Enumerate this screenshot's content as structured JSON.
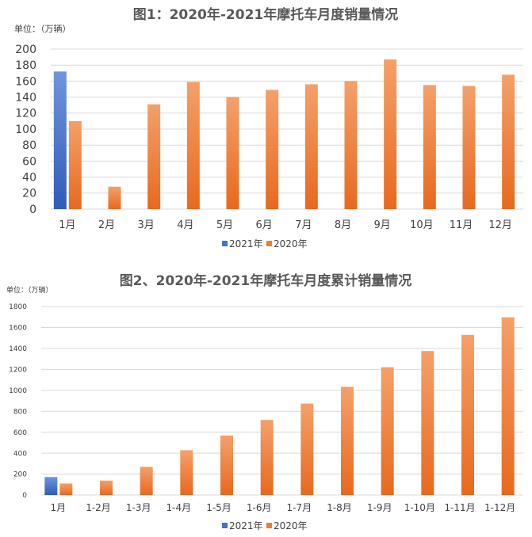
{
  "colors": {
    "s2021": "#4472c4",
    "s2020": "#ed7d31",
    "grid": "#d9d9d9",
    "text": "#404040",
    "title": "#595959"
  },
  "chart_data": [
    {
      "type": "bar",
      "title": "图1：2020年-2021年摩托车月度销量情况",
      "unit": "单位：（万辆）",
      "categories": [
        "1月",
        "2月",
        "3月",
        "4月",
        "5月",
        "6月",
        "7月",
        "8月",
        "9月",
        "10月",
        "11月",
        "12月"
      ],
      "ylim": [
        0,
        200
      ],
      "yticks": [
        0,
        20,
        40,
        60,
        80,
        100,
        120,
        140,
        160,
        180,
        200
      ],
      "grid": true,
      "legend": "bottom",
      "series": [
        {
          "name": "2021年",
          "values": [
            172,
            null,
            null,
            null,
            null,
            null,
            null,
            null,
            null,
            null,
            null,
            null
          ]
        },
        {
          "name": "2020年",
          "values": [
            110,
            28,
            131,
            159,
            140,
            149,
            156,
            160,
            187,
            155,
            154,
            168
          ]
        }
      ]
    },
    {
      "type": "bar",
      "title": "图2、2020年-2021年摩托车月度累计销量情况",
      "unit": "单位：（万辆）",
      "categories": [
        "1月",
        "1-2月",
        "1-3月",
        "1-4月",
        "1-5月",
        "1-6月",
        "1-7月",
        "1-8月",
        "1-9月",
        "1-10月",
        "1-11月",
        "1-12月"
      ],
      "ylim": [
        0,
        1800
      ],
      "yticks": [
        0,
        200,
        400,
        600,
        800,
        1000,
        1200,
        1400,
        1600,
        1800
      ],
      "grid": true,
      "legend": "bottom",
      "series": [
        {
          "name": "2021年",
          "values": [
            172,
            null,
            null,
            null,
            null,
            null,
            null,
            null,
            null,
            null,
            null,
            null
          ]
        },
        {
          "name": "2020年",
          "values": [
            110,
            138,
            269,
            428,
            568,
            717,
            873,
            1033,
            1220,
            1375,
            1529,
            1697
          ]
        }
      ]
    }
  ]
}
